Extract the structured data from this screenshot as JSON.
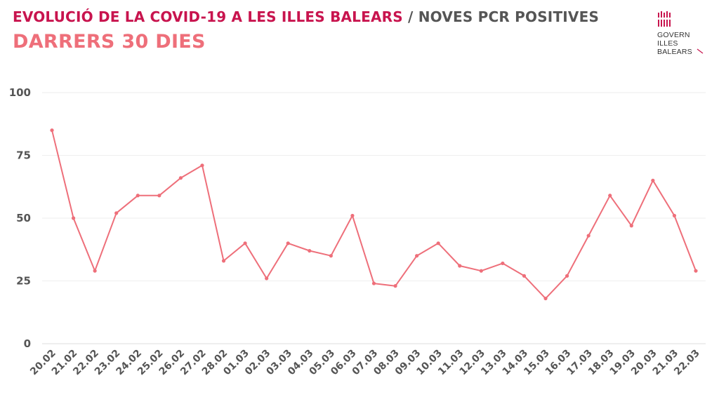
{
  "header": {
    "title_main": "EVOLUCIÓ DE LA COVID-19 A LES ILLES BALEARS",
    "title_sep": " / ",
    "title_sub": "NOVES PCR POSITIVES",
    "subtitle": "DARRERS 30 DIES"
  },
  "logo": {
    "line1": "GOVERN",
    "line2": "ILLES",
    "line3": "BALEARS",
    "icon": "govern-illes-balears-logo"
  },
  "colors": {
    "title_accent": "#c8144e",
    "subtitle": "#ee6f7a",
    "line": "#ee6f7a",
    "grid": "#eeeeee",
    "text": "#555555"
  },
  "chart_data": {
    "type": "line",
    "title": "EVOLUCIÓ DE LA COVID-19 A LES ILLES BALEARS / NOVES PCR POSITIVES",
    "subtitle": "DARRERS 30 DIES",
    "xlabel": "",
    "ylabel": "",
    "ylim": [
      0,
      100
    ],
    "yticks": [
      "0",
      "25",
      "50",
      "75",
      "100"
    ],
    "grid": true,
    "categories": [
      "20.02",
      "21.02",
      "22.02",
      "23.02",
      "24.02",
      "25.02",
      "26.02",
      "27.02",
      "28.02",
      "01.03",
      "02.03",
      "03.03",
      "04.03",
      "05.03",
      "06.03",
      "07.03",
      "08.03",
      "09.03",
      "10.03",
      "11.03",
      "12.03",
      "13.03",
      "14.03",
      "15.03",
      "16.03",
      "17.03",
      "18.03",
      "19.03",
      "20.03",
      "21.03",
      "22.03"
    ],
    "values": [
      85,
      50,
      29,
      52,
      59,
      59,
      66,
      71,
      33,
      40,
      26,
      40,
      37,
      35,
      51,
      24,
      23,
      35,
      40,
      31,
      29,
      32,
      27,
      18,
      27,
      43,
      59,
      47,
      65,
      51,
      29
    ]
  }
}
